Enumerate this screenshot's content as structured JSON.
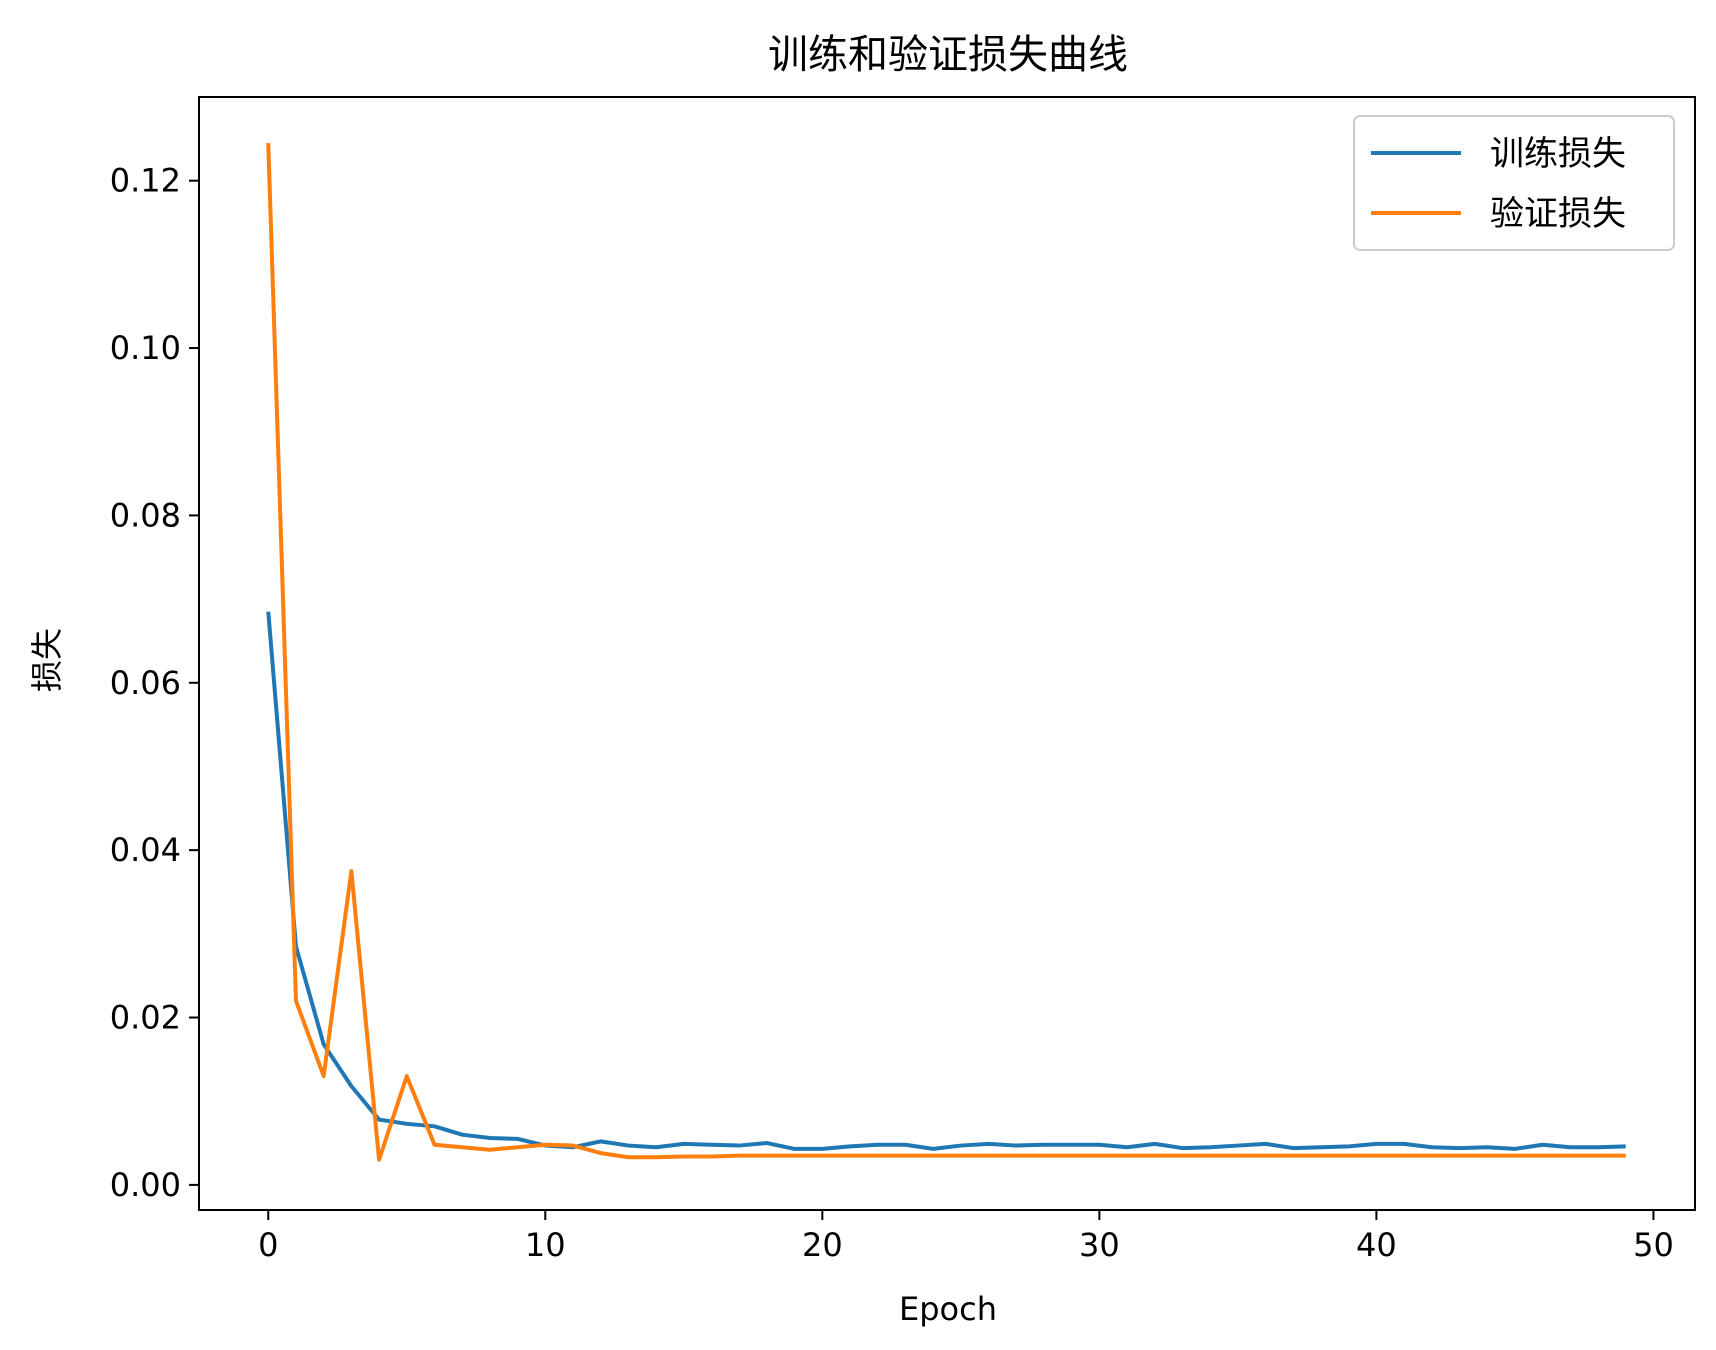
{
  "chart_data": {
    "type": "line",
    "title": "训练和验证损失曲线",
    "xlabel": "Epoch",
    "ylabel": "损失",
    "xlim": [
      -2.5,
      51.5
    ],
    "ylim": [
      -0.003,
      0.13
    ],
    "xticks": [
      0,
      10,
      20,
      30,
      40,
      50
    ],
    "xtick_labels": [
      "0",
      "10",
      "20",
      "30",
      "40",
      "50"
    ],
    "yticks": [
      0.0,
      0.02,
      0.04,
      0.06,
      0.08,
      0.1,
      0.12
    ],
    "ytick_labels": [
      "0.00",
      "0.02",
      "0.04",
      "0.06",
      "0.08",
      "0.10",
      "0.12"
    ],
    "grid": false,
    "legend_position": "top-right",
    "x": [
      0,
      1,
      2,
      3,
      4,
      5,
      6,
      7,
      8,
      9,
      10,
      11,
      12,
      13,
      14,
      15,
      16,
      17,
      18,
      19,
      20,
      21,
      22,
      23,
      24,
      25,
      26,
      27,
      28,
      29,
      30,
      31,
      32,
      33,
      34,
      35,
      36,
      37,
      38,
      39,
      40,
      41,
      42,
      43,
      44,
      45,
      46,
      47,
      48,
      49
    ],
    "series": [
      {
        "name": "训练损失",
        "color": "#1f77b4",
        "values": [
          0.0685,
          0.0285,
          0.0168,
          0.0118,
          0.0078,
          0.0073,
          0.007,
          0.006,
          0.0056,
          0.0055,
          0.0047,
          0.0045,
          0.0052,
          0.0047,
          0.0045,
          0.0049,
          0.0048,
          0.0047,
          0.005,
          0.0043,
          0.0043,
          0.0046,
          0.0048,
          0.0048,
          0.0043,
          0.0047,
          0.0049,
          0.0047,
          0.0048,
          0.0048,
          0.0048,
          0.0045,
          0.0049,
          0.0044,
          0.0045,
          0.0047,
          0.0049,
          0.0044,
          0.0045,
          0.0046,
          0.0049,
          0.0049,
          0.0045,
          0.0044,
          0.0045,
          0.0043,
          0.0048,
          0.0045,
          0.0045,
          0.0046
        ]
      },
      {
        "name": "验证损失",
        "color": "#ff7f0e",
        "values": [
          0.1245,
          0.022,
          0.013,
          0.0375,
          0.003,
          0.013,
          0.0048,
          0.0045,
          0.0042,
          0.0045,
          0.0048,
          0.0047,
          0.0038,
          0.0033,
          0.0033,
          0.0034,
          0.0034,
          0.0035,
          0.0035,
          0.0035,
          0.0035,
          0.0035,
          0.0035,
          0.0035,
          0.0035,
          0.0035,
          0.0035,
          0.0035,
          0.0035,
          0.0035,
          0.0035,
          0.0035,
          0.0035,
          0.0035,
          0.0035,
          0.0035,
          0.0035,
          0.0035,
          0.0035,
          0.0035,
          0.0035,
          0.0035,
          0.0035,
          0.0035,
          0.0035,
          0.0035,
          0.0035,
          0.0035,
          0.0035,
          0.0035
        ]
      }
    ]
  }
}
